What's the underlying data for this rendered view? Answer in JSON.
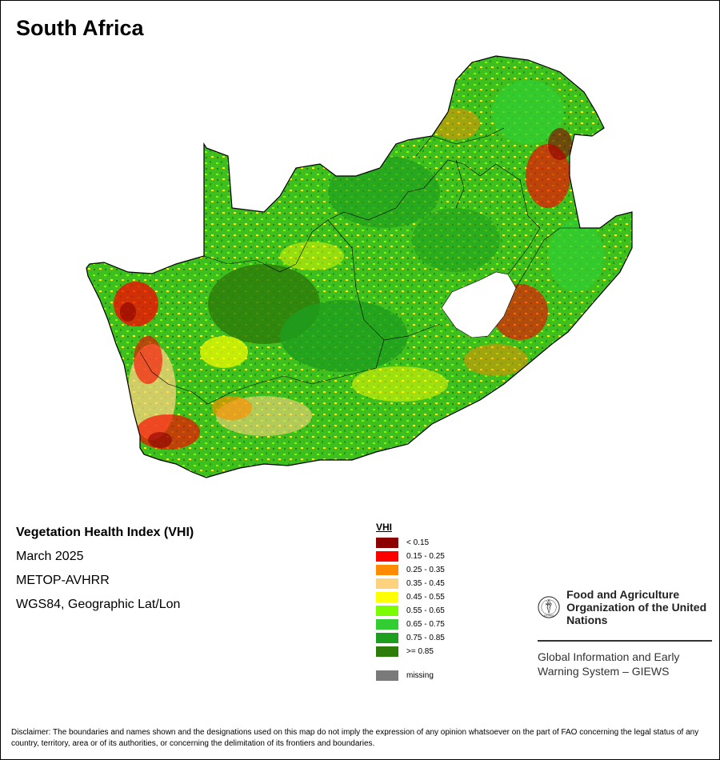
{
  "header": {
    "title": "South Africa"
  },
  "map": {
    "colors": {
      "outside": "#ffffff",
      "border_line": "#000000",
      "lesotho_hole": "#ffffff"
    }
  },
  "metadata": {
    "product": "Vegetation Health Index (VHI)",
    "date": "March 2025",
    "sensor": "METOP-AVHRR",
    "projection": "WGS84, Geographic Lat/Lon"
  },
  "legend": {
    "title": "VHI",
    "items": [
      {
        "label": "< 0.15",
        "color": "#8b0000"
      },
      {
        "label": "0.15 - 0.25",
        "color": "#ff0000"
      },
      {
        "label": "0.25 - 0.35",
        "color": "#ff8c00"
      },
      {
        "label": "0.35 - 0.45",
        "color": "#ffd27f"
      },
      {
        "label": "0.45 - 0.55",
        "color": "#ffff00"
      },
      {
        "label": "0.55 - 0.65",
        "color": "#7cfc00"
      },
      {
        "label": "0.65 - 0.75",
        "color": "#32cd32"
      },
      {
        "label": "0.75 - 0.85",
        "color": "#1e9e1e"
      },
      {
        "label": ">= 0.85",
        "color": "#2e7d0a"
      }
    ],
    "missing": {
      "label": "missing",
      "color": "#7a7a7a"
    }
  },
  "fao": {
    "logo_letters": "FAO",
    "logo_ring_text": "FIAT PANIS",
    "name": "Food and Agriculture Organization of the United Nations",
    "giews": "Global Information and Early Warning System – GIEWS"
  },
  "disclaimer": "Disclaimer: The boundaries and names shown and the designations used on this map do not imply the expression of any opinion whatsoever on the part of FAO concerning the legal status of any country, territory, area or of its authorities, or concerning the delimitation of its frontiers and boundaries."
}
